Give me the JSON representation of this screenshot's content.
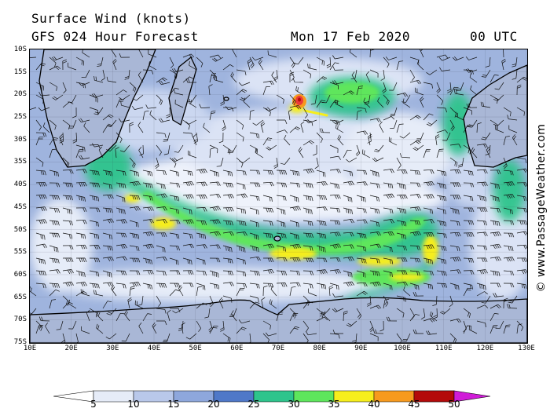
{
  "header": {
    "title": "Surface Wind (knots)",
    "subtitle": "GFS 024 Hour Forecast",
    "date": "Mon 17 Feb 2020",
    "time": "00 UTC"
  },
  "map": {
    "lat_labels": [
      "10S",
      "15S",
      "20S",
      "25S",
      "30S",
      "35S",
      "40S",
      "45S",
      "50S",
      "55S",
      "60S",
      "65S",
      "70S",
      "75S"
    ],
    "lon_labels": [
      "10E",
      "20E",
      "30E",
      "40E",
      "50E",
      "60E",
      "70E",
      "80E",
      "90E",
      "100E",
      "110E",
      "120E",
      "130E"
    ],
    "lon_range": [
      10,
      130
    ],
    "lat_range": [
      -10,
      -75
    ]
  },
  "credit": "© www.PassageWeather.com",
  "legend": {
    "labels": [
      "5",
      "10",
      "15",
      "20",
      "25",
      "30",
      "35",
      "40",
      "45",
      "50"
    ],
    "colors": [
      "#e6ecf8",
      "#b9c8ea",
      "#8ea7dc",
      "#4f78c8",
      "#2ec48c",
      "#5ee65c",
      "#f6ee1c",
      "#f79a1e",
      "#ea3a3a",
      "#b40a0a",
      "#d01cd8"
    ]
  }
}
